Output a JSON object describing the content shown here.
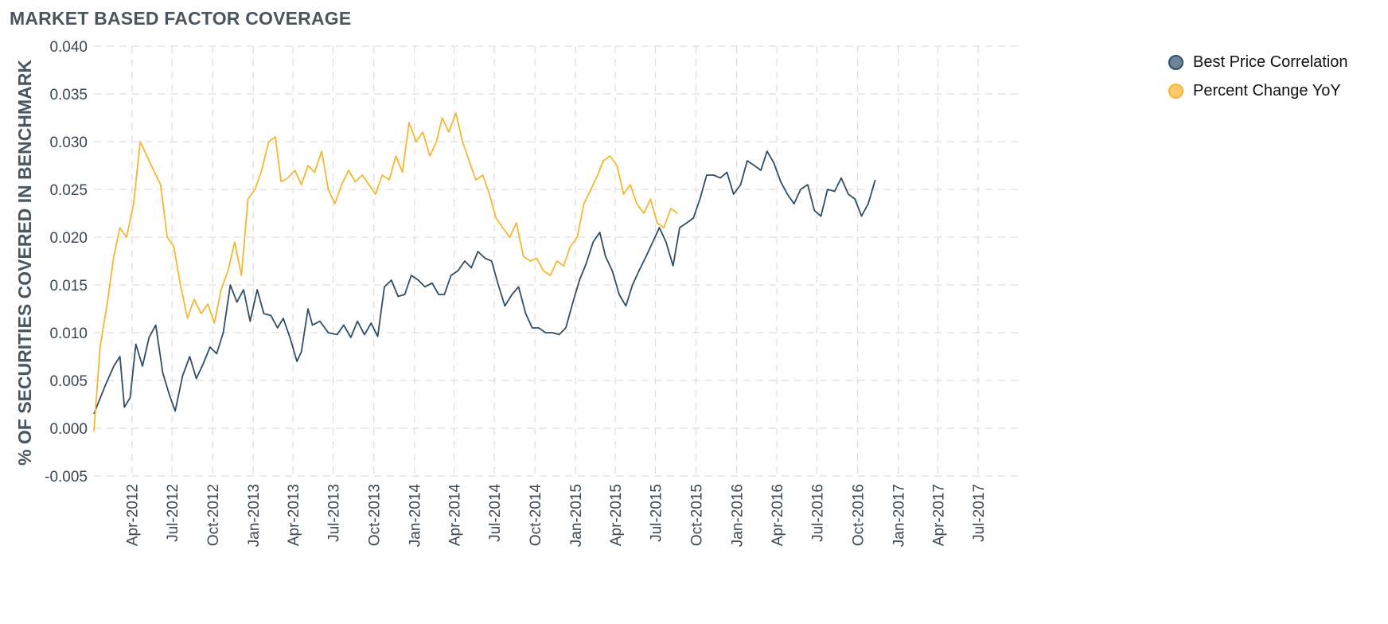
{
  "title": "MARKET BASED FACTOR COVERAGE",
  "colors": {
    "best_price": "#2f4e66",
    "percent_change": "#f5b731",
    "grid": "#dddddd",
    "axis_text": "#3c4650"
  },
  "chart_data": {
    "type": "line",
    "title": "MARKET BASED FACTOR COVERAGE",
    "xlabel": "",
    "ylabel": "% OF SECURITIES COVERED IN BENCHMARK",
    "ylim": [
      -0.005,
      0.04
    ],
    "xlim": [
      "2012-01-06",
      "2017-10-01"
    ],
    "y_ticks": [
      "0.040",
      "0.035",
      "0.030",
      "0.025",
      "0.020",
      "0.015",
      "0.010",
      "0.005",
      "0.000",
      "-0.005"
    ],
    "x_ticks": [
      "Apr-2012",
      "Jul-2012",
      "Oct-2012",
      "Jan-2013",
      "Apr-2013",
      "Jul-2013",
      "Oct-2013",
      "Jan-2014",
      "Apr-2014",
      "Jul-2014",
      "Oct-2014",
      "Jan-2015",
      "Apr-2015",
      "Jul-2015",
      "Oct-2015",
      "Jan-2016",
      "Apr-2016",
      "Jul-2016",
      "Oct-2016",
      "Jan-2017",
      "Apr-2017",
      "Jul-2017"
    ],
    "grid": true,
    "legend_position": "top-right",
    "series": [
      {
        "name": "Best Price Correlation",
        "color": "#2f4e66",
        "points": [
          [
            "2012-01-06",
            0.0015
          ],
          [
            "2012-02-01",
            0.0045
          ],
          [
            "2012-02-20",
            0.0065
          ],
          [
            "2012-03-05",
            0.0075
          ],
          [
            "2012-03-15",
            0.0022
          ],
          [
            "2012-03-28",
            0.0032
          ],
          [
            "2012-04-10",
            0.0088
          ],
          [
            "2012-04-25",
            0.0065
          ],
          [
            "2012-05-10",
            0.0095
          ],
          [
            "2012-05-25",
            0.0108
          ],
          [
            "2012-06-10",
            0.0058
          ],
          [
            "2012-06-25",
            0.0035
          ],
          [
            "2012-07-08",
            0.0018
          ],
          [
            "2012-07-25",
            0.0055
          ],
          [
            "2012-08-10",
            0.0075
          ],
          [
            "2012-08-25",
            0.0052
          ],
          [
            "2012-09-10",
            0.0068
          ],
          [
            "2012-09-25",
            0.0085
          ],
          [
            "2012-10-10",
            0.0078
          ],
          [
            "2012-10-25",
            0.01
          ],
          [
            "2012-11-10",
            0.015
          ],
          [
            "2012-11-25",
            0.0132
          ],
          [
            "2012-12-10",
            0.0145
          ],
          [
            "2012-12-25",
            0.0112
          ],
          [
            "2013-01-10",
            0.0145
          ],
          [
            "2013-01-25",
            0.012
          ],
          [
            "2013-02-10",
            0.0118
          ],
          [
            "2013-02-25",
            0.0105
          ],
          [
            "2013-03-10",
            0.0115
          ],
          [
            "2013-03-25",
            0.0095
          ],
          [
            "2013-04-10",
            0.007
          ],
          [
            "2013-04-20",
            0.008
          ],
          [
            "2013-05-05",
            0.0125
          ],
          [
            "2013-05-15",
            0.0108
          ],
          [
            "2013-06-01",
            0.0112
          ],
          [
            "2013-06-20",
            0.01
          ],
          [
            "2013-07-10",
            0.0098
          ],
          [
            "2013-07-25",
            0.0108
          ],
          [
            "2013-08-10",
            0.0095
          ],
          [
            "2013-08-25",
            0.0112
          ],
          [
            "2013-09-10",
            0.0098
          ],
          [
            "2013-09-25",
            0.011
          ],
          [
            "2013-10-10",
            0.0096
          ],
          [
            "2013-10-25",
            0.0148
          ],
          [
            "2013-11-10",
            0.0155
          ],
          [
            "2013-11-25",
            0.0138
          ],
          [
            "2013-12-10",
            0.014
          ],
          [
            "2013-12-25",
            0.016
          ],
          [
            "2014-01-10",
            0.0155
          ],
          [
            "2014-01-25",
            0.0148
          ],
          [
            "2014-02-10",
            0.0152
          ],
          [
            "2014-02-25",
            0.014
          ],
          [
            "2014-03-10",
            0.014
          ],
          [
            "2014-03-25",
            0.016
          ],
          [
            "2014-04-10",
            0.0165
          ],
          [
            "2014-04-25",
            0.0175
          ],
          [
            "2014-05-10",
            0.0168
          ],
          [
            "2014-05-25",
            0.0185
          ],
          [
            "2014-06-10",
            0.0178
          ],
          [
            "2014-06-25",
            0.0175
          ],
          [
            "2014-07-10",
            0.015
          ],
          [
            "2014-07-25",
            0.0128
          ],
          [
            "2014-08-10",
            0.014
          ],
          [
            "2014-08-25",
            0.0148
          ],
          [
            "2014-09-10",
            0.012
          ],
          [
            "2014-09-25",
            0.0105
          ],
          [
            "2014-10-10",
            0.0105
          ],
          [
            "2014-10-25",
            0.01
          ],
          [
            "2014-11-10",
            0.01
          ],
          [
            "2014-11-25",
            0.0098
          ],
          [
            "2014-12-10",
            0.0105
          ],
          [
            "2014-12-25",
            0.013
          ],
          [
            "2015-01-10",
            0.0155
          ],
          [
            "2015-01-25",
            0.0172
          ],
          [
            "2015-02-10",
            0.0195
          ],
          [
            "2015-02-25",
            0.0205
          ],
          [
            "2015-03-10",
            0.018
          ],
          [
            "2015-03-25",
            0.0165
          ],
          [
            "2015-04-10",
            0.014
          ],
          [
            "2015-04-25",
            0.0128
          ],
          [
            "2015-05-10",
            0.015
          ],
          [
            "2015-05-25",
            0.0165
          ],
          [
            "2015-06-10",
            0.018
          ],
          [
            "2015-06-25",
            0.0195
          ],
          [
            "2015-07-10",
            0.021
          ],
          [
            "2015-07-25",
            0.0195
          ],
          [
            "2015-08-10",
            0.017
          ],
          [
            "2015-08-25",
            0.021
          ],
          [
            "2015-09-10",
            0.0215
          ],
          [
            "2015-09-25",
            0.022
          ],
          [
            "2015-10-10",
            0.024
          ],
          [
            "2015-10-25",
            0.0265
          ],
          [
            "2015-11-10",
            0.0265
          ],
          [
            "2015-11-25",
            0.0262
          ],
          [
            "2015-12-10",
            0.0268
          ],
          [
            "2015-12-25",
            0.0245
          ],
          [
            "2016-01-10",
            0.0255
          ],
          [
            "2016-01-25",
            0.028
          ],
          [
            "2016-02-10",
            0.0275
          ],
          [
            "2016-02-25",
            0.027
          ],
          [
            "2016-03-10",
            0.029
          ],
          [
            "2016-03-25",
            0.0278
          ],
          [
            "2016-04-10",
            0.0258
          ],
          [
            "2016-04-25",
            0.0245
          ],
          [
            "2016-05-10",
            0.0235
          ],
          [
            "2016-05-25",
            0.025
          ],
          [
            "2016-06-10",
            0.0255
          ],
          [
            "2016-06-25",
            0.0228
          ],
          [
            "2016-07-10",
            0.0222
          ],
          [
            "2016-07-25",
            0.025
          ],
          [
            "2016-08-10",
            0.0248
          ],
          [
            "2016-08-25",
            0.0262
          ],
          [
            "2016-09-10",
            0.0245
          ],
          [
            "2016-09-25",
            0.024
          ],
          [
            "2016-10-10",
            0.0222
          ],
          [
            "2016-10-25",
            0.0235
          ],
          [
            "2016-11-10",
            0.026
          ]
        ]
      },
      {
        "name": "Percent Change YoY",
        "color": "#f5b731",
        "points": [
          [
            "2012-01-06",
            -0.0003
          ],
          [
            "2012-01-20",
            0.0085
          ],
          [
            "2012-02-05",
            0.013
          ],
          [
            "2012-02-20",
            0.018
          ],
          [
            "2012-03-05",
            0.021
          ],
          [
            "2012-03-20",
            0.02
          ],
          [
            "2012-04-05",
            0.0235
          ],
          [
            "2012-04-20",
            0.03
          ],
          [
            "2012-05-05",
            0.0285
          ],
          [
            "2012-05-20",
            0.027
          ],
          [
            "2012-06-05",
            0.0255
          ],
          [
            "2012-06-20",
            0.02
          ],
          [
            "2012-07-05",
            0.019
          ],
          [
            "2012-07-20",
            0.015
          ],
          [
            "2012-08-05",
            0.0115
          ],
          [
            "2012-08-20",
            0.0135
          ],
          [
            "2012-09-05",
            0.012
          ],
          [
            "2012-09-20",
            0.013
          ],
          [
            "2012-10-05",
            0.011
          ],
          [
            "2012-10-20",
            0.0145
          ],
          [
            "2012-11-05",
            0.0165
          ],
          [
            "2012-11-20",
            0.0195
          ],
          [
            "2012-12-05",
            0.016
          ],
          [
            "2012-12-20",
            0.024
          ],
          [
            "2013-01-05",
            0.025
          ],
          [
            "2013-01-20",
            0.027
          ],
          [
            "2013-02-05",
            0.03
          ],
          [
            "2013-02-20",
            0.0305
          ],
          [
            "2013-03-05",
            0.0258
          ],
          [
            "2013-03-20",
            0.0262
          ],
          [
            "2013-04-05",
            0.027
          ],
          [
            "2013-04-20",
            0.0255
          ],
          [
            "2013-05-05",
            0.0275
          ],
          [
            "2013-05-20",
            0.0268
          ],
          [
            "2013-06-05",
            0.029
          ],
          [
            "2013-06-20",
            0.025
          ],
          [
            "2013-07-05",
            0.0235
          ],
          [
            "2013-07-20",
            0.0255
          ],
          [
            "2013-08-05",
            0.027
          ],
          [
            "2013-08-20",
            0.0258
          ],
          [
            "2013-09-05",
            0.0265
          ],
          [
            "2013-09-20",
            0.0255
          ],
          [
            "2013-10-05",
            0.0245
          ],
          [
            "2013-10-20",
            0.0265
          ],
          [
            "2013-11-05",
            0.026
          ],
          [
            "2013-11-20",
            0.0285
          ],
          [
            "2013-12-05",
            0.0268
          ],
          [
            "2013-12-20",
            0.032
          ],
          [
            "2014-01-05",
            0.03
          ],
          [
            "2014-01-20",
            0.031
          ],
          [
            "2014-02-05",
            0.0285
          ],
          [
            "2014-02-20",
            0.03
          ],
          [
            "2014-03-05",
            0.0325
          ],
          [
            "2014-03-20",
            0.031
          ],
          [
            "2014-04-05",
            0.033
          ],
          [
            "2014-04-20",
            0.03
          ],
          [
            "2014-05-05",
            0.028
          ],
          [
            "2014-05-20",
            0.026
          ],
          [
            "2014-06-05",
            0.0265
          ],
          [
            "2014-06-20",
            0.0245
          ],
          [
            "2014-07-05",
            0.022
          ],
          [
            "2014-07-20",
            0.021
          ],
          [
            "2014-08-05",
            0.02
          ],
          [
            "2014-08-20",
            0.0215
          ],
          [
            "2014-09-05",
            0.018
          ],
          [
            "2014-09-20",
            0.0175
          ],
          [
            "2014-10-05",
            0.0178
          ],
          [
            "2014-10-20",
            0.0165
          ],
          [
            "2014-11-05",
            0.016
          ],
          [
            "2014-11-20",
            0.0175
          ],
          [
            "2014-12-05",
            0.017
          ],
          [
            "2014-12-20",
            0.019
          ],
          [
            "2015-01-05",
            0.02
          ],
          [
            "2015-01-20",
            0.0235
          ],
          [
            "2015-02-05",
            0.025
          ],
          [
            "2015-02-20",
            0.0265
          ],
          [
            "2015-03-05",
            0.028
          ],
          [
            "2015-03-20",
            0.0285
          ],
          [
            "2015-04-05",
            0.0275
          ],
          [
            "2015-04-20",
            0.0245
          ],
          [
            "2015-05-05",
            0.0255
          ],
          [
            "2015-05-20",
            0.0235
          ],
          [
            "2015-06-05",
            0.0225
          ],
          [
            "2015-06-20",
            0.024
          ],
          [
            "2015-07-05",
            0.0215
          ],
          [
            "2015-07-20",
            0.021
          ],
          [
            "2015-08-05",
            0.023
          ],
          [
            "2015-08-20",
            0.0225
          ]
        ]
      }
    ]
  },
  "legend": {
    "items": [
      {
        "label": "Best Price Correlation",
        "color": "#2f4e66",
        "fill": "#6d8497"
      },
      {
        "label": "Percent Change YoY",
        "color": "#f5b731",
        "fill": "#fcca6a"
      }
    ]
  }
}
